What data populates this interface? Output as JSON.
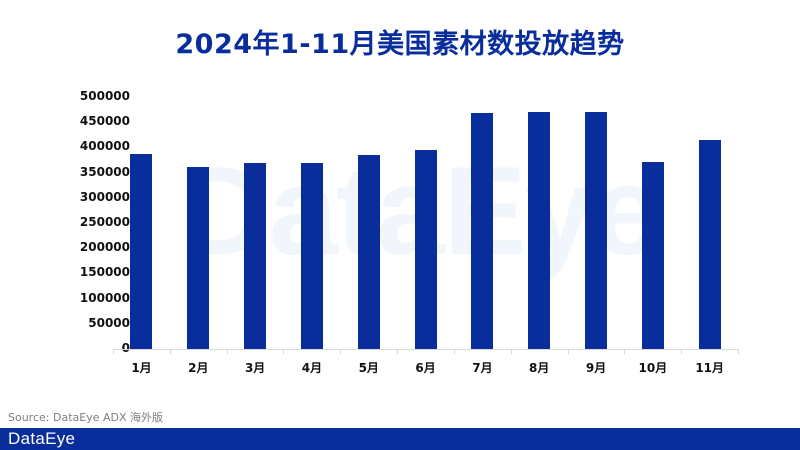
{
  "title": "2024年1-11月美国素材数投放趋势",
  "watermark": "DataEye",
  "source": "Source: DataEye ADX 海外版",
  "footer": {
    "logo": "DataEye"
  },
  "colors": {
    "bar": "#0a2d9c",
    "title": "#0a2d9c",
    "footer": "#0a2d9c",
    "watermark": "#f1f5fc"
  },
  "chart_data": {
    "type": "bar",
    "title": "2024年1-11月美国素材数投放趋势",
    "xlabel": "",
    "ylabel": "",
    "categories": [
      "1月",
      "2月",
      "3月",
      "4月",
      "5月",
      "6月",
      "7月",
      "8月",
      "9月",
      "10月",
      "11月"
    ],
    "values": [
      387000,
      361000,
      369000,
      370000,
      384000,
      395000,
      469000,
      471000,
      470000,
      371000,
      415000
    ],
    "ylim": [
      0,
      500000
    ],
    "yticks": [
      "0",
      "50000",
      "100000",
      "150000",
      "200000",
      "250000",
      "300000",
      "350000",
      "400000",
      "450000",
      "500000"
    ],
    "grid": false,
    "legend": null
  }
}
